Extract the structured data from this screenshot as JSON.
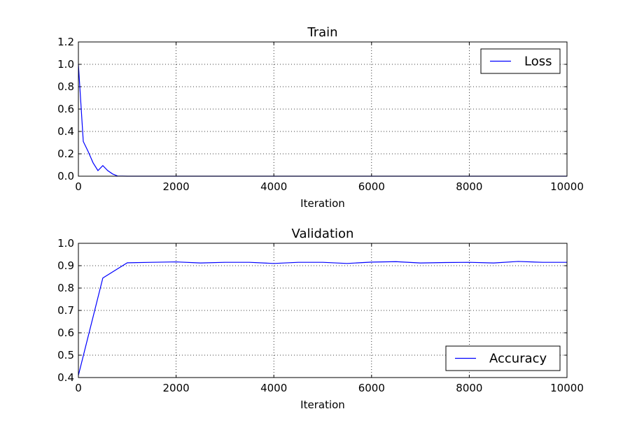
{
  "chart_data": [
    {
      "type": "line",
      "title": "Train",
      "xlabel": "Iteration",
      "ylabel": "",
      "xlim": [
        0,
        10000
      ],
      "ylim": [
        0.0,
        1.2
      ],
      "x_ticks": [
        "0",
        "2000",
        "4000",
        "6000",
        "8000",
        "10000"
      ],
      "y_ticks": [
        "0.0",
        "0.2",
        "0.4",
        "0.6",
        "0.8",
        "1.0",
        "1.2"
      ],
      "grid": true,
      "legend_position": "top-right",
      "series": [
        {
          "name": "Loss",
          "color": "#0000ff",
          "x": [
            0,
            100,
            200,
            300,
            400,
            500,
            600,
            700,
            800,
            900,
            1000,
            1500,
            2000,
            3000,
            4000,
            5000,
            6000,
            7000,
            8000,
            9000,
            10000
          ],
          "y": [
            1.0,
            0.31,
            0.22,
            0.12,
            0.05,
            0.095,
            0.05,
            0.02,
            0.002,
            0.001,
            0.0,
            0.0,
            0.0,
            0.0,
            0.0,
            0.0,
            0.0,
            0.0,
            0.0,
            0.0,
            0.0
          ]
        }
      ]
    },
    {
      "type": "line",
      "title": "Validation",
      "xlabel": "Iteration",
      "ylabel": "",
      "xlim": [
        0,
        10000
      ],
      "ylim": [
        0.4,
        1.0
      ],
      "x_ticks": [
        "0",
        "2000",
        "4000",
        "6000",
        "8000",
        "10000"
      ],
      "y_ticks": [
        "0.4",
        "0.5",
        "0.6",
        "0.7",
        "0.8",
        "0.9",
        "1.0"
      ],
      "grid": true,
      "legend_position": "bottom-right",
      "series": [
        {
          "name": "Accuracy",
          "color": "#0000ff",
          "x": [
            0,
            500,
            1000,
            1500,
            2000,
            2500,
            3000,
            3500,
            4000,
            4500,
            5000,
            5500,
            6000,
            6500,
            7000,
            7500,
            8000,
            8500,
            9000,
            9500,
            10000
          ],
          "y": [
            0.41,
            0.845,
            0.913,
            0.915,
            0.917,
            0.912,
            0.915,
            0.915,
            0.91,
            0.915,
            0.915,
            0.91,
            0.916,
            0.918,
            0.912,
            0.914,
            0.915,
            0.912,
            0.919,
            0.915,
            0.915
          ]
        }
      ]
    }
  ]
}
